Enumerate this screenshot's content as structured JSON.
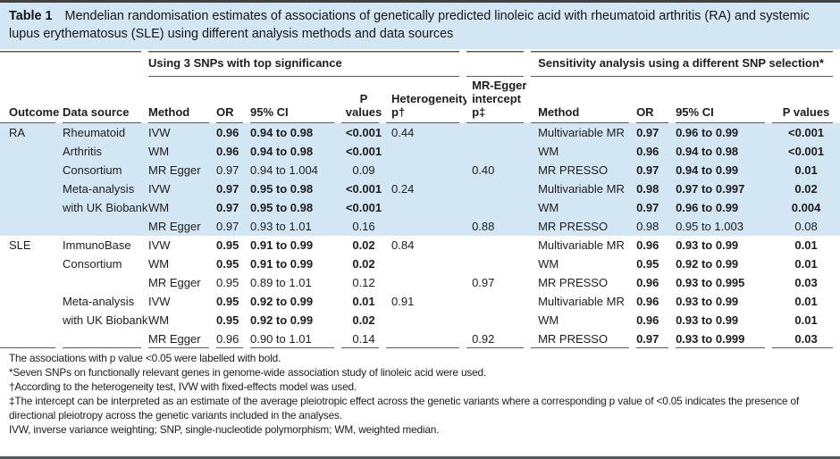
{
  "table": {
    "label": "Table 1",
    "caption": "Mendelian randomisation estimates of associations of genetically predicted linoleic acid with rheumatoid arthritis (RA) and systemic lupus erythematosus (SLE) using different analysis methods and data sources",
    "group_headers": {
      "left": "Using 3 SNPs with top significance",
      "right": "Sensitivity analysis using a different SNP selection*"
    },
    "columns": {
      "outcome": "Outcome",
      "source": "Data source",
      "method": "Method",
      "or": "OR",
      "ci": "95% CI",
      "p": "P values",
      "het": "Heterogeneity p†",
      "egger": "MR-Egger intercept p‡",
      "method2": "Method",
      "or2": "OR",
      "ci2": "95% CI",
      "p2": "P values"
    },
    "rows": [
      {
        "outcome": "RA",
        "source": "Rheumatoid Arthritis Consortium",
        "method": "IVW",
        "or": "0.96",
        "ci": "0.94 to 0.98",
        "p": "<0.001",
        "het": "0.44",
        "egger": "",
        "method2": "Multivariable MR",
        "or2": "0.97",
        "ci2": "0.96 to 0.99",
        "p2": "<0.001"
      },
      {
        "method": "WM",
        "or": "0.96",
        "ci": "0.94 to 0.98",
        "p": "<0.001",
        "het": "",
        "egger": "",
        "method2": "WM",
        "or2": "0.96",
        "ci2": "0.94 to 0.98",
        "p2": "<0.001"
      },
      {
        "method": "MR Egger",
        "or": "0.97",
        "ci": "0.94 to 1.004",
        "p": "0.09",
        "het": "",
        "egger": "0.40",
        "method2": "MR PRESSO",
        "or2": "0.97",
        "ci2": "0.94 to 0.99",
        "p2": "0.01"
      },
      {
        "source": "Meta-analysis with UK Biobank",
        "method": "IVW",
        "or": "0.97",
        "ci": "0.95 to 0.98",
        "p": "<0.001",
        "het": "0.24",
        "egger": "",
        "method2": "Multivariable MR",
        "or2": "0.98",
        "ci2": "0.97 to 0.997",
        "p2": "0.02"
      },
      {
        "method": "WM",
        "or": "0.97",
        "ci": "0.95 to 0.98",
        "p": "<0.001",
        "het": "",
        "egger": "",
        "method2": "WM",
        "or2": "0.97",
        "ci2": "0.96 to 0.99",
        "p2": "0.004"
      },
      {
        "method": "MR Egger",
        "or": "0.97",
        "ci": "0.93 to 1.01",
        "p": "0.16",
        "het": "",
        "egger": "0.88",
        "method2": "MR PRESSO",
        "or2": "0.98",
        "ci2": "0.95 to 1.003",
        "p2": "0.08"
      },
      {
        "outcome": "SLE",
        "source": "ImmunoBase Consortium",
        "method": "IVW",
        "or": "0.95",
        "ci": "0.91 to 0.99",
        "p": "0.02",
        "het": "0.84",
        "egger": "",
        "method2": "Multivariable MR",
        "or2": "0.96",
        "ci2": "0.93 to 0.99",
        "p2": "0.01"
      },
      {
        "method": "WM",
        "or": "0.95",
        "ci": "0.91 to 0.99",
        "p": "0.02",
        "het": "",
        "egger": "",
        "method2": "WM",
        "or2": "0.95",
        "ci2": "0.92 to 0.99",
        "p2": "0.01"
      },
      {
        "method": "MR Egger",
        "or": "0.95",
        "ci": "0.89 to 1.01",
        "p": "0.12",
        "het": "",
        "egger": "0.97",
        "method2": "MR PRESSO",
        "or2": "0.96",
        "ci2": "0.93 to 0.995",
        "p2": "0.03"
      },
      {
        "source": "Meta-analysis with UK Biobank",
        "method": "IVW",
        "or": "0.95",
        "ci": "0.92 to 0.99",
        "p": "0.01",
        "het": "0.91",
        "egger": "",
        "method2": "Multivariable MR",
        "or2": "0.96",
        "ci2": "0.93 to 0.99",
        "p2": "0.01"
      },
      {
        "method": "WM",
        "or": "0.95",
        "ci": "0.92 to 0.99",
        "p": "0.02",
        "het": "",
        "egger": "",
        "method2": "WM",
        "or2": "0.96",
        "ci2": "0.93 to 0.99",
        "p2": "0.01"
      },
      {
        "method": "MR Egger",
        "or": "0.96",
        "ci": "0.90 to 1.01",
        "p": "0.14",
        "het": "",
        "egger": "0.92",
        "method2": "MR PRESSO",
        "or2": "0.97",
        "ci2": "0.93 to 0.999",
        "p2": "0.03"
      }
    ],
    "footnotes": [
      "The associations with p value <0.05 were labelled with bold.",
      "*Seven SNPs on functionally relevant genes in genome-wide association study of linoleic acid were used.",
      "†According to the heterogeneity test, IVW with fixed-effects model was used.",
      "‡The intercept can be interpreted as an estimate of the average pleiotropic effect across the genetic variants where a corresponding p value of <0.05 indicates the presence of directional pleiotropy across the genetic variants included in the analyses.",
      "IVW, inverse variance weighting; SNP, single-nucleotide polymorphism; WM, weighted median."
    ],
    "colors": {
      "band_blue": "#d2e6f4",
      "rule_gray": "#595b5d",
      "border_dark": "#3f4142"
    }
  }
}
